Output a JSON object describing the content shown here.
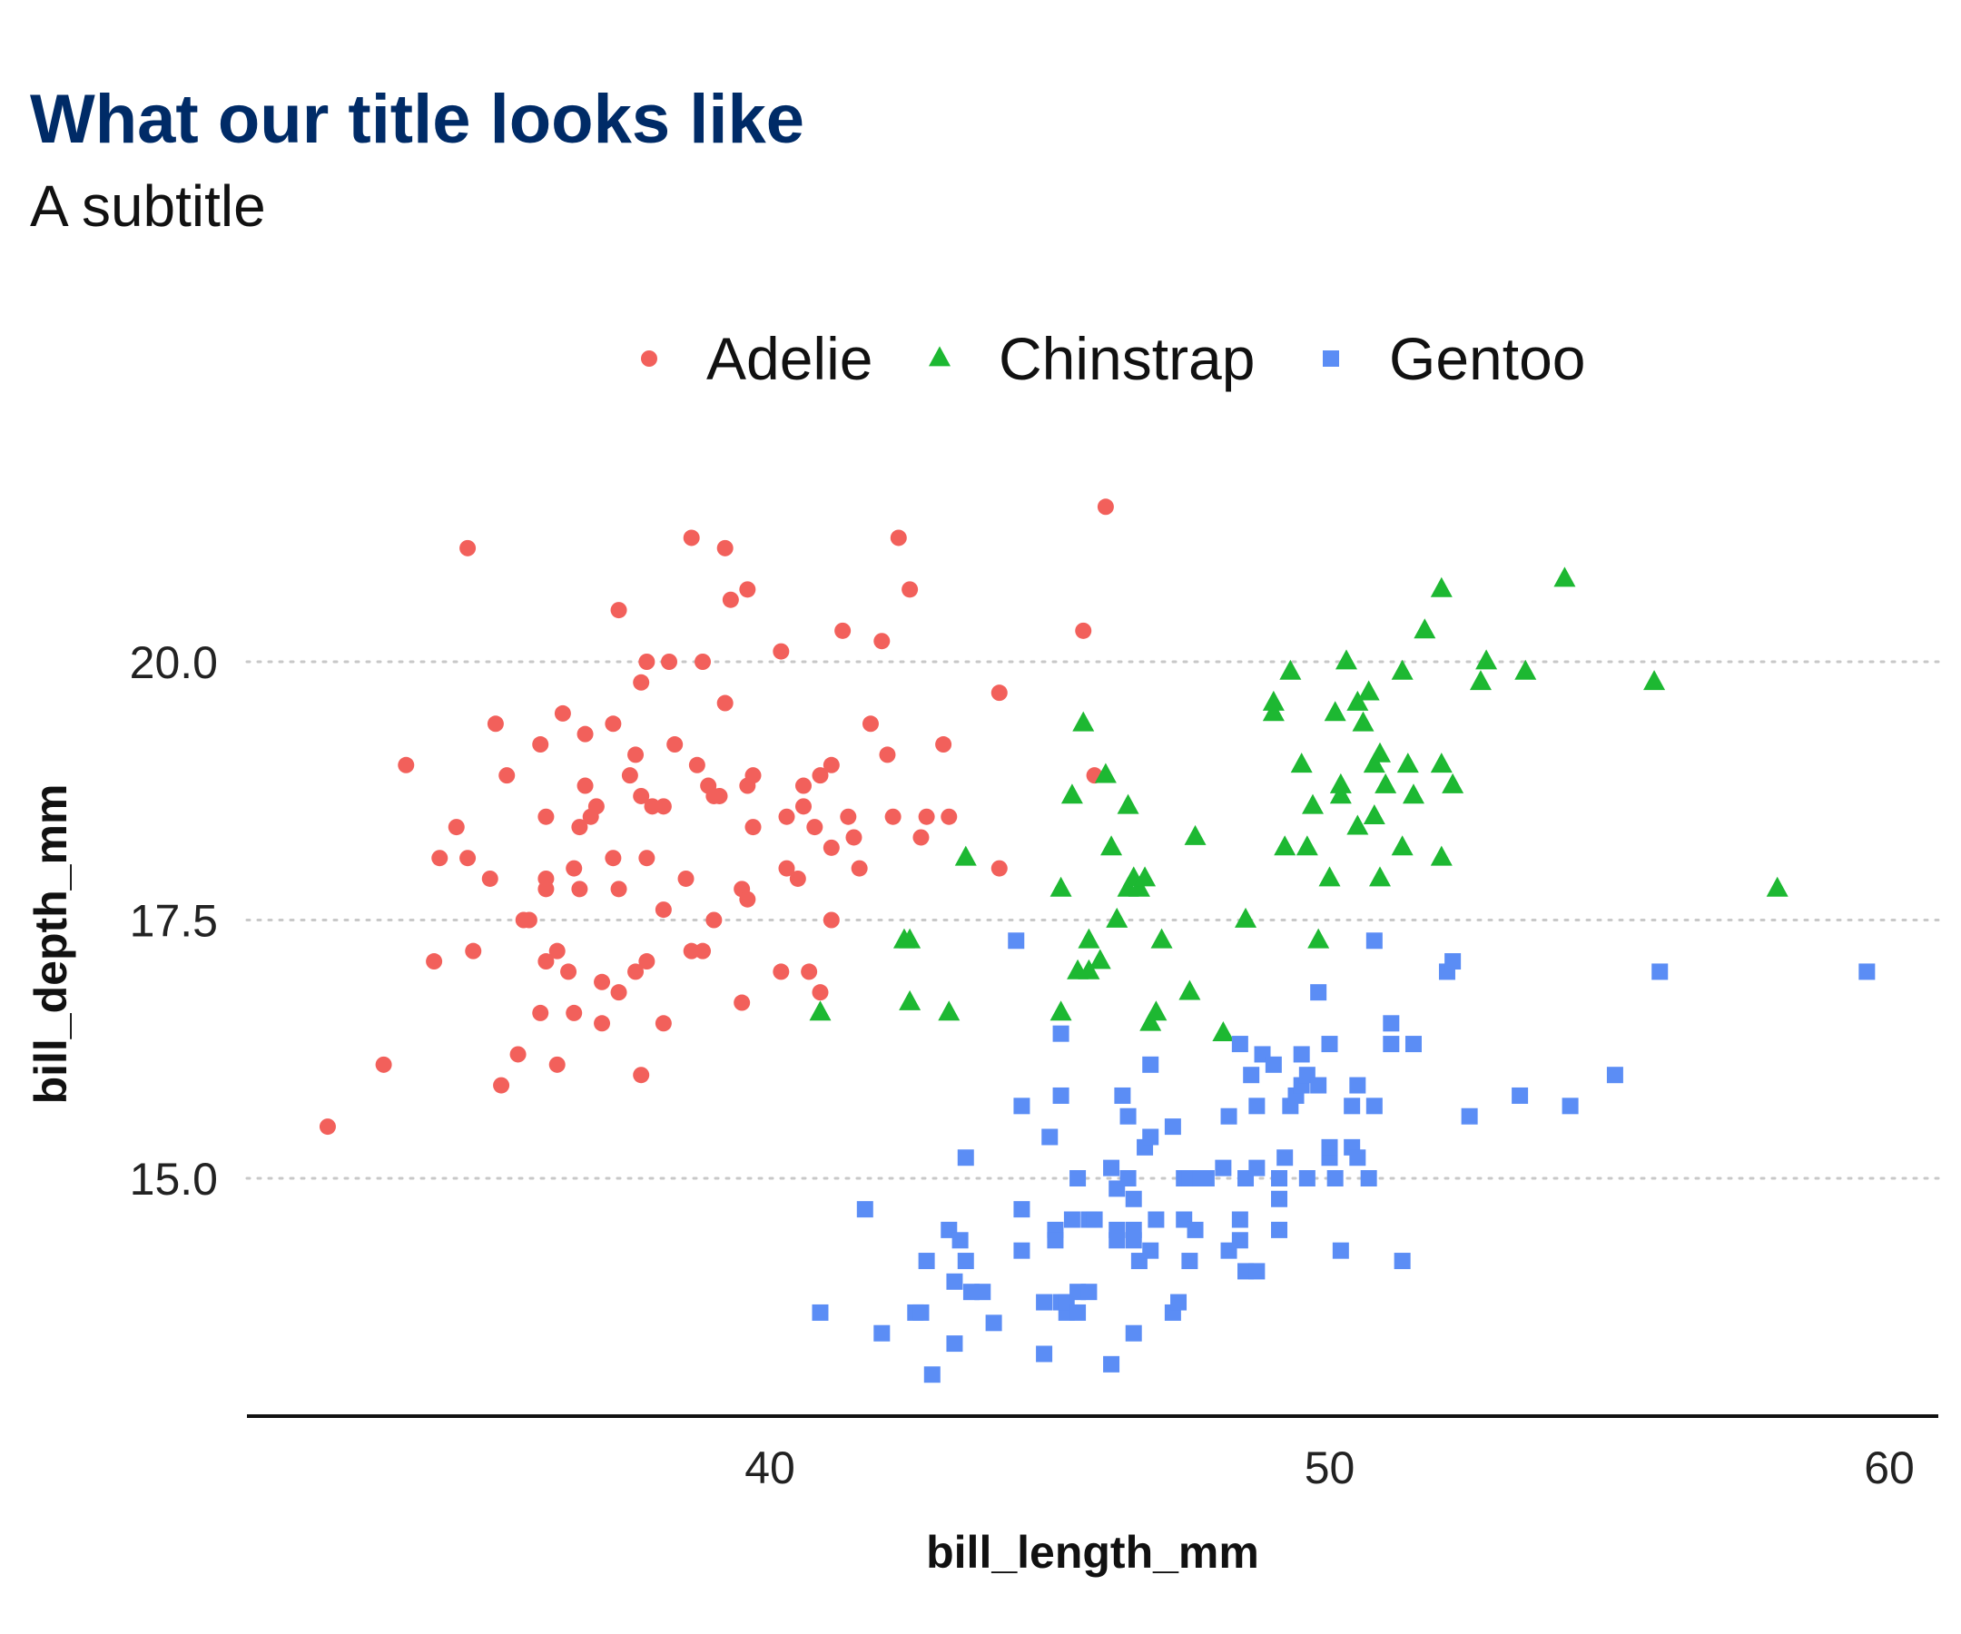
{
  "chart_data": {
    "type": "scatter",
    "title": "What our title looks like",
    "subtitle": "A subtitle",
    "xlabel": "bill_length_mm",
    "ylabel": "bill_depth_mm",
    "xlim": [
      32.1,
      61.0
    ],
    "ylim": [
      12.7,
      21.8
    ],
    "x_ticks": [
      40,
      50,
      60
    ],
    "x_tick_labels": [
      "40",
      "50",
      "60"
    ],
    "y_ticks": [
      15,
      17.5,
      20
    ],
    "y_tick_labels": [
      "15.0",
      "17.5",
      "20.0"
    ],
    "grid": "horizontal-dotted",
    "legend_position": "top",
    "series": [
      {
        "name": "Adelie",
        "marker": "circle",
        "color": "#f2605b",
        "points": [
          [
            32.1,
            15.5
          ],
          [
            33.1,
            16.1
          ],
          [
            33.5,
            19.0
          ],
          [
            34.0,
            17.1
          ],
          [
            34.1,
            18.1
          ],
          [
            34.4,
            18.4
          ],
          [
            34.6,
            18.1
          ],
          [
            34.6,
            21.1
          ],
          [
            34.7,
            17.2
          ],
          [
            35.0,
            17.9
          ],
          [
            35.1,
            19.4
          ],
          [
            35.2,
            15.9
          ],
          [
            35.3,
            18.9
          ],
          [
            35.5,
            16.2
          ],
          [
            35.6,
            17.5
          ],
          [
            35.7,
            17.5
          ],
          [
            35.9,
            16.6
          ],
          [
            35.9,
            19.2
          ],
          [
            36.0,
            17.1
          ],
          [
            36.0,
            17.8
          ],
          [
            36.0,
            18.5
          ],
          [
            36.0,
            17.9
          ],
          [
            36.2,
            16.1
          ],
          [
            36.2,
            17.2
          ],
          [
            36.3,
            19.5
          ],
          [
            36.4,
            17.0
          ],
          [
            36.5,
            16.6
          ],
          [
            36.5,
            18.0
          ],
          [
            36.6,
            17.8
          ],
          [
            36.6,
            18.4
          ],
          [
            36.7,
            18.8
          ],
          [
            36.7,
            19.3
          ],
          [
            36.8,
            18.5
          ],
          [
            36.9,
            18.6
          ],
          [
            37.0,
            16.9
          ],
          [
            37.0,
            16.5
          ],
          [
            37.2,
            18.1
          ],
          [
            37.2,
            19.4
          ],
          [
            37.3,
            16.8
          ],
          [
            37.3,
            17.8
          ],
          [
            37.3,
            20.5
          ],
          [
            37.5,
            18.9
          ],
          [
            37.6,
            19.1
          ],
          [
            37.6,
            17.0
          ],
          [
            37.7,
            18.7
          ],
          [
            37.7,
            19.8
          ],
          [
            37.7,
            16.0
          ],
          [
            37.8,
            18.1
          ],
          [
            37.8,
            17.1
          ],
          [
            37.8,
            20.0
          ],
          [
            37.9,
            18.6
          ],
          [
            38.1,
            18.6
          ],
          [
            38.1,
            17.6
          ],
          [
            38.1,
            16.5
          ],
          [
            38.2,
            20.0
          ],
          [
            38.3,
            19.2
          ],
          [
            38.5,
            17.9
          ],
          [
            38.6,
            21.2
          ],
          [
            38.6,
            17.2
          ],
          [
            38.7,
            19.0
          ],
          [
            38.8,
            17.2
          ],
          [
            38.8,
            20.0
          ],
          [
            38.9,
            18.8
          ],
          [
            39.0,
            17.5
          ],
          [
            39.0,
            18.7
          ],
          [
            39.1,
            18.7
          ],
          [
            39.2,
            21.1
          ],
          [
            39.2,
            19.6
          ],
          [
            39.3,
            20.6
          ],
          [
            39.5,
            16.7
          ],
          [
            39.5,
            17.8
          ],
          [
            39.6,
            17.7
          ],
          [
            39.6,
            18.8
          ],
          [
            39.6,
            20.7
          ],
          [
            39.7,
            18.4
          ],
          [
            39.7,
            18.9
          ],
          [
            40.2,
            17.0
          ],
          [
            40.2,
            20.1
          ],
          [
            40.3,
            18.0
          ],
          [
            40.3,
            18.5
          ],
          [
            40.5,
            17.9
          ],
          [
            40.6,
            18.6
          ],
          [
            40.6,
            18.8
          ],
          [
            40.7,
            17.0
          ],
          [
            40.8,
            18.4
          ],
          [
            40.9,
            16.8
          ],
          [
            40.9,
            18.9
          ],
          [
            41.1,
            18.2
          ],
          [
            41.1,
            19.0
          ],
          [
            41.1,
            17.5
          ],
          [
            41.3,
            20.3
          ],
          [
            41.4,
            18.5
          ],
          [
            41.5,
            18.3
          ],
          [
            41.6,
            18.0
          ],
          [
            41.8,
            19.4
          ],
          [
            42.0,
            20.2
          ],
          [
            42.1,
            19.1
          ],
          [
            42.2,
            18.5
          ],
          [
            42.3,
            21.2
          ],
          [
            42.5,
            20.7
          ],
          [
            42.7,
            18.3
          ],
          [
            42.8,
            18.5
          ],
          [
            43.1,
            19.2
          ],
          [
            43.2,
            18.5
          ],
          [
            44.1,
            18.0
          ],
          [
            44.1,
            19.7
          ],
          [
            45.6,
            20.3
          ],
          [
            45.8,
            18.9
          ],
          [
            46.0,
            21.5
          ]
        ]
      },
      {
        "name": "Chinstrap",
        "marker": "triangle",
        "color": "#1db832",
        "points": [
          [
            40.9,
            16.6
          ],
          [
            42.4,
            17.3
          ],
          [
            42.5,
            17.3
          ],
          [
            42.5,
            16.7
          ],
          [
            43.2,
            16.6
          ],
          [
            43.5,
            18.1
          ],
          [
            45.2,
            17.8
          ],
          [
            45.2,
            16.6
          ],
          [
            45.4,
            18.7
          ],
          [
            45.5,
            17.0
          ],
          [
            45.6,
            19.4
          ],
          [
            45.7,
            17.3
          ],
          [
            45.7,
            17.0
          ],
          [
            45.9,
            17.1
          ],
          [
            46.0,
            18.9
          ],
          [
            46.1,
            18.2
          ],
          [
            46.2,
            17.5
          ],
          [
            46.4,
            17.8
          ],
          [
            46.4,
            18.6
          ],
          [
            46.5,
            17.9
          ],
          [
            46.6,
            17.8
          ],
          [
            46.7,
            17.9
          ],
          [
            46.8,
            16.5
          ],
          [
            46.9,
            16.6
          ],
          [
            47.0,
            17.3
          ],
          [
            47.5,
            16.8
          ],
          [
            47.6,
            18.3
          ],
          [
            48.1,
            16.4
          ],
          [
            48.5,
            17.5
          ],
          [
            49.0,
            19.5
          ],
          [
            49.0,
            19.6
          ],
          [
            49.2,
            18.2
          ],
          [
            49.3,
            19.9
          ],
          [
            49.5,
            19.0
          ],
          [
            49.6,
            18.2
          ],
          [
            49.7,
            18.6
          ],
          [
            49.8,
            17.3
          ],
          [
            50.1,
            19.5
          ],
          [
            50.2,
            18.7
          ],
          [
            50.3,
            20.0
          ],
          [
            50.2,
            18.8
          ],
          [
            50.0,
            17.9
          ],
          [
            50.5,
            19.6
          ],
          [
            50.5,
            18.4
          ],
          [
            50.6,
            19.4
          ],
          [
            50.7,
            19.7
          ],
          [
            50.8,
            18.5
          ],
          [
            50.8,
            19.0
          ],
          [
            50.9,
            17.9
          ],
          [
            50.9,
            19.1
          ],
          [
            51.0,
            18.8
          ],
          [
            51.3,
            19.9
          ],
          [
            51.3,
            18.2
          ],
          [
            51.4,
            19.0
          ],
          [
            51.5,
            18.7
          ],
          [
            51.7,
            20.3
          ],
          [
            52.0,
            18.1
          ],
          [
            52.0,
            19.0
          ],
          [
            52.0,
            20.7
          ],
          [
            52.2,
            18.8
          ],
          [
            52.7,
            19.8
          ],
          [
            52.8,
            20.0
          ],
          [
            53.5,
            19.9
          ],
          [
            54.2,
            20.8
          ],
          [
            55.8,
            19.8
          ],
          [
            58.0,
            17.8
          ]
        ]
      },
      {
        "name": "Gentoo",
        "marker": "square",
        "color": "#5b8df5",
        "points": [
          [
            40.9,
            13.7
          ],
          [
            41.7,
            14.7
          ],
          [
            42.0,
            13.5
          ],
          [
            42.6,
            13.7
          ],
          [
            42.7,
            13.7
          ],
          [
            42.8,
            14.2
          ],
          [
            42.9,
            13.1
          ],
          [
            43.2,
            14.5
          ],
          [
            43.3,
            14.0
          ],
          [
            43.3,
            13.4
          ],
          [
            43.4,
            14.4
          ],
          [
            43.5,
            14.2
          ],
          [
            43.5,
            15.2
          ],
          [
            43.6,
            13.9
          ],
          [
            43.8,
            13.9
          ],
          [
            44.0,
            13.6
          ],
          [
            44.4,
            17.3
          ],
          [
            44.5,
            15.7
          ],
          [
            44.5,
            14.3
          ],
          [
            44.5,
            14.7
          ],
          [
            44.9,
            13.8
          ],
          [
            44.9,
            13.3
          ],
          [
            45.0,
            15.4
          ],
          [
            45.1,
            14.5
          ],
          [
            45.1,
            14.4
          ],
          [
            45.2,
            13.8
          ],
          [
            45.2,
            15.8
          ],
          [
            45.2,
            16.4
          ],
          [
            45.3,
            13.7
          ],
          [
            45.3,
            13.8
          ],
          [
            45.4,
            14.6
          ],
          [
            45.5,
            13.9
          ],
          [
            45.5,
            13.7
          ],
          [
            45.5,
            15.0
          ],
          [
            45.7,
            13.9
          ],
          [
            45.7,
            14.6
          ],
          [
            45.8,
            14.6
          ],
          [
            46.1,
            13.2
          ],
          [
            46.1,
            15.1
          ],
          [
            46.2,
            14.4
          ],
          [
            46.2,
            14.9
          ],
          [
            46.2,
            14.5
          ],
          [
            46.3,
            15.8
          ],
          [
            46.4,
            15.6
          ],
          [
            46.4,
            15.0
          ],
          [
            46.5,
            14.8
          ],
          [
            46.5,
            13.5
          ],
          [
            46.5,
            14.4
          ],
          [
            46.5,
            14.5
          ],
          [
            46.6,
            14.2
          ],
          [
            46.7,
            15.3
          ],
          [
            46.8,
            14.3
          ],
          [
            46.8,
            15.4
          ],
          [
            46.8,
            16.1
          ],
          [
            46.9,
            14.6
          ],
          [
            47.2,
            13.7
          ],
          [
            47.2,
            15.5
          ],
          [
            47.3,
            13.8
          ],
          [
            47.4,
            14.6
          ],
          [
            47.4,
            15.0
          ],
          [
            47.5,
            14.2
          ],
          [
            47.5,
            15.0
          ],
          [
            47.6,
            14.5
          ],
          [
            47.7,
            15.0
          ],
          [
            47.8,
            15.0
          ],
          [
            48.1,
            15.1
          ],
          [
            48.2,
            14.3
          ],
          [
            48.2,
            15.6
          ],
          [
            48.4,
            14.6
          ],
          [
            48.4,
            14.4
          ],
          [
            48.4,
            16.3
          ],
          [
            48.5,
            14.1
          ],
          [
            48.5,
            15.0
          ],
          [
            48.6,
            16.0
          ],
          [
            48.7,
            14.1
          ],
          [
            48.7,
            15.1
          ],
          [
            48.7,
            15.7
          ],
          [
            48.8,
            16.2
          ],
          [
            49.0,
            16.1
          ],
          [
            49.1,
            14.5
          ],
          [
            49.1,
            14.8
          ],
          [
            49.1,
            15.0
          ],
          [
            49.2,
            15.2
          ],
          [
            49.3,
            15.7
          ],
          [
            49.4,
            15.8
          ],
          [
            49.5,
            15.9
          ],
          [
            49.5,
            16.2
          ],
          [
            49.6,
            15.0
          ],
          [
            49.6,
            16.0
          ],
          [
            49.8,
            15.9
          ],
          [
            49.8,
            16.8
          ],
          [
            50.0,
            15.2
          ],
          [
            50.0,
            15.3
          ],
          [
            50.0,
            16.3
          ],
          [
            50.1,
            15.0
          ],
          [
            50.2,
            14.3
          ],
          [
            50.4,
            15.3
          ],
          [
            50.4,
            15.7
          ],
          [
            50.5,
            15.2
          ],
          [
            50.5,
            15.9
          ],
          [
            50.7,
            15.0
          ],
          [
            50.8,
            15.7
          ],
          [
            50.8,
            17.3
          ],
          [
            51.1,
            16.3
          ],
          [
            51.1,
            16.5
          ],
          [
            51.3,
            14.2
          ],
          [
            51.5,
            16.3
          ],
          [
            52.1,
            17.0
          ],
          [
            52.2,
            17.1
          ],
          [
            52.5,
            15.6
          ],
          [
            53.4,
            15.8
          ],
          [
            54.3,
            15.7
          ],
          [
            55.1,
            16.0
          ],
          [
            55.9,
            17.0
          ],
          [
            59.6,
            17.0
          ]
        ]
      }
    ]
  }
}
